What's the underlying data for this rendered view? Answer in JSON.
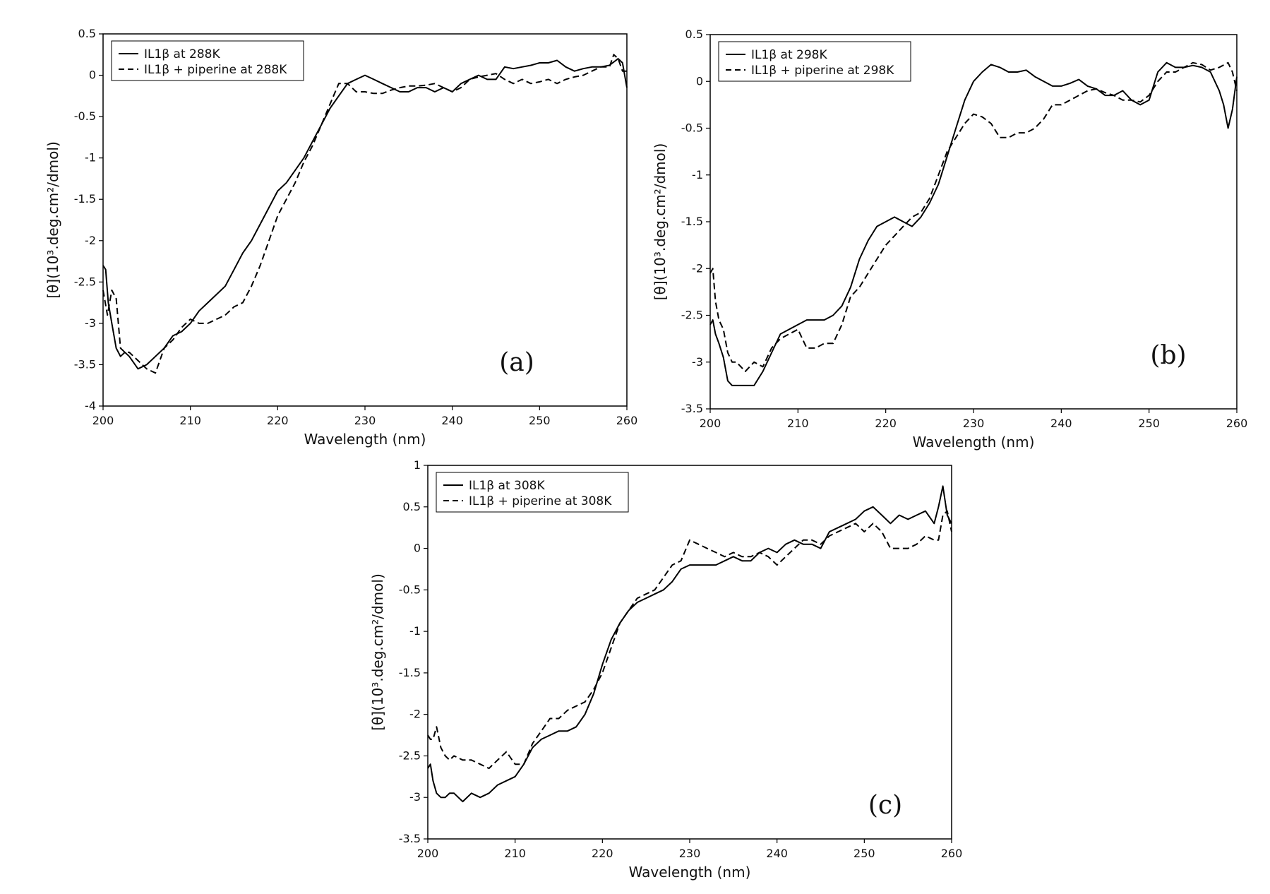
{
  "chart_data": [
    {
      "type": "line",
      "panel_label": "(a)",
      "xlabel": "Wavelength (nm)",
      "ylabel": "[θ](10³.deg.cm²/dmol)",
      "xlim": [
        200,
        260
      ],
      "ylim": [
        -4,
        0.5
      ],
      "xticks": [
        200,
        210,
        220,
        230,
        240,
        250,
        260
      ],
      "yticks": [
        0.5,
        0,
        -0.5,
        -1,
        -1.5,
        -2,
        -2.5,
        -3,
        -3.5,
        -4
      ],
      "ytick_labels": [
        "0.5",
        "0",
        "-0.5",
        "-1",
        "-1.5",
        "-2",
        "-2.5",
        "-3",
        "-3.5",
        "-4"
      ],
      "legend_position": "top-left",
      "series": [
        {
          "name": "IL1β at 288K",
          "style": "solid",
          "x": [
            200,
            200.3,
            200.6,
            201,
            201.5,
            202,
            202.5,
            203,
            204,
            205,
            206,
            207,
            208,
            209,
            210,
            211,
            212,
            213,
            214,
            215,
            216,
            217,
            218,
            219,
            220,
            221,
            222,
            223,
            224,
            225,
            226,
            227,
            228,
            229,
            230,
            231,
            232,
            233,
            234,
            235,
            236,
            237,
            238,
            239,
            240,
            241,
            242,
            243,
            244,
            245,
            246,
            247,
            248,
            249,
            250,
            251,
            252,
            253,
            254,
            255,
            256,
            257,
            258,
            259,
            259.5,
            260
          ],
          "y": [
            -2.3,
            -2.35,
            -2.75,
            -3.0,
            -3.3,
            -3.4,
            -3.35,
            -3.4,
            -3.55,
            -3.5,
            -3.4,
            -3.3,
            -3.15,
            -3.1,
            -3.0,
            -2.85,
            -2.75,
            -2.65,
            -2.55,
            -2.35,
            -2.15,
            -2.0,
            -1.8,
            -1.6,
            -1.4,
            -1.3,
            -1.15,
            -1.0,
            -0.8,
            -0.6,
            -0.4,
            -0.25,
            -0.1,
            -0.05,
            0.0,
            -0.05,
            -0.1,
            -0.15,
            -0.2,
            -0.2,
            -0.15,
            -0.15,
            -0.2,
            -0.15,
            -0.2,
            -0.1,
            -0.05,
            0.0,
            -0.05,
            -0.05,
            0.1,
            0.08,
            0.1,
            0.12,
            0.15,
            0.15,
            0.18,
            0.1,
            0.05,
            0.08,
            0.1,
            0.1,
            0.12,
            0.2,
            0.15,
            -0.15
          ]
        },
        {
          "name": "IL1β + piperine at 288K",
          "style": "dashed",
          "x": [
            200,
            200.5,
            201,
            201.5,
            202,
            202.5,
            203,
            204,
            205,
            206,
            207,
            208,
            209,
            210,
            211,
            212,
            213,
            214,
            215,
            216,
            217,
            218,
            219,
            220,
            221,
            222,
            223,
            224,
            225,
            226,
            227,
            228,
            229,
            230,
            231,
            232,
            233,
            234,
            235,
            236,
            237,
            238,
            239,
            240,
            241,
            242,
            243,
            244,
            245,
            246,
            247,
            248,
            249,
            250,
            251,
            252,
            253,
            254,
            255,
            256,
            257,
            258,
            258.5,
            259,
            259.5,
            260
          ],
          "y": [
            -2.6,
            -2.9,
            -2.6,
            -2.7,
            -3.3,
            -3.35,
            -3.35,
            -3.45,
            -3.55,
            -3.6,
            -3.3,
            -3.2,
            -3.05,
            -2.95,
            -3.0,
            -3.0,
            -2.95,
            -2.9,
            -2.8,
            -2.75,
            -2.55,
            -2.3,
            -2.0,
            -1.7,
            -1.5,
            -1.3,
            -1.05,
            -0.85,
            -0.6,
            -0.35,
            -0.1,
            -0.1,
            -0.2,
            -0.2,
            -0.22,
            -0.22,
            -0.18,
            -0.15,
            -0.13,
            -0.13,
            -0.12,
            -0.1,
            -0.15,
            -0.2,
            -0.15,
            -0.05,
            -0.02,
            0.0,
            0.02,
            -0.05,
            -0.1,
            -0.05,
            -0.1,
            -0.08,
            -0.05,
            -0.1,
            -0.05,
            -0.02,
            0.0,
            0.05,
            0.1,
            0.1,
            0.25,
            0.2,
            0.05,
            0.05
          ]
        }
      ]
    },
    {
      "type": "line",
      "panel_label": "(b)",
      "xlabel": "Wavelength (nm)",
      "ylabel": "[θ](10³.deg.cm²/dmol)",
      "xlim": [
        200,
        260
      ],
      "ylim": [
        -3.5,
        0.5
      ],
      "xticks": [
        200,
        210,
        220,
        230,
        240,
        250,
        260
      ],
      "yticks": [
        0.5,
        0,
        -0.5,
        -1,
        -1.5,
        -2,
        -2.5,
        -3,
        -3.5
      ],
      "ytick_labels": [
        "0.5",
        "0",
        "-0.5",
        "-1",
        "-1.5",
        "-2",
        "-2.5",
        "-3",
        "-3.5"
      ],
      "legend_position": "top-left",
      "series": [
        {
          "name": "IL1β at 298K",
          "style": "solid",
          "x": [
            200,
            200.3,
            200.6,
            201,
            201.5,
            202,
            202.5,
            203,
            204,
            205,
            206,
            207,
            208,
            209,
            210,
            211,
            212,
            213,
            214,
            215,
            216,
            217,
            218,
            219,
            220,
            221,
            222,
            223,
            224,
            225,
            226,
            227,
            228,
            229,
            230,
            231,
            232,
            233,
            234,
            235,
            236,
            237,
            238,
            239,
            240,
            241,
            242,
            243,
            244,
            245,
            246,
            247,
            248,
            249,
            250,
            251,
            252,
            253,
            254,
            255,
            256,
            257,
            258,
            258.5,
            259,
            259.5,
            260
          ],
          "y": [
            -2.6,
            -2.55,
            -2.7,
            -2.8,
            -2.95,
            -3.2,
            -3.25,
            -3.25,
            -3.25,
            -3.25,
            -3.1,
            -2.9,
            -2.7,
            -2.65,
            -2.6,
            -2.55,
            -2.55,
            -2.55,
            -2.5,
            -2.4,
            -2.2,
            -1.9,
            -1.7,
            -1.55,
            -1.5,
            -1.45,
            -1.5,
            -1.55,
            -1.45,
            -1.3,
            -1.1,
            -0.8,
            -0.5,
            -0.2,
            0.0,
            0.1,
            0.18,
            0.15,
            0.1,
            0.1,
            0.12,
            0.05,
            0.0,
            -0.05,
            -0.05,
            -0.02,
            0.02,
            -0.05,
            -0.08,
            -0.15,
            -0.15,
            -0.1,
            -0.2,
            -0.25,
            -0.2,
            0.1,
            0.2,
            0.15,
            0.15,
            0.17,
            0.15,
            0.1,
            -0.1,
            -0.25,
            -0.5,
            -0.3,
            0.05
          ]
        },
        {
          "name": "IL1β + piperine at 298K",
          "style": "dashed",
          "x": [
            200,
            200.3,
            200.6,
            201,
            201.5,
            202,
            202.5,
            203,
            204,
            205,
            206,
            207,
            208,
            209,
            210,
            211,
            212,
            213,
            214,
            215,
            216,
            217,
            218,
            219,
            220,
            221,
            222,
            223,
            224,
            225,
            226,
            227,
            228,
            229,
            230,
            231,
            232,
            233,
            234,
            235,
            236,
            237,
            238,
            239,
            240,
            241,
            242,
            243,
            244,
            245,
            246,
            247,
            248,
            249,
            250,
            251,
            252,
            253,
            254,
            255,
            256,
            257,
            258,
            259,
            259.5,
            260
          ],
          "y": [
            -2.05,
            -2.0,
            -2.35,
            -2.55,
            -2.65,
            -2.9,
            -3.0,
            -3.0,
            -3.1,
            -3.0,
            -3.05,
            -2.85,
            -2.75,
            -2.7,
            -2.65,
            -2.85,
            -2.85,
            -2.8,
            -2.8,
            -2.6,
            -2.3,
            -2.2,
            -2.05,
            -1.9,
            -1.75,
            -1.65,
            -1.55,
            -1.45,
            -1.4,
            -1.25,
            -1.0,
            -0.75,
            -0.6,
            -0.45,
            -0.35,
            -0.38,
            -0.45,
            -0.6,
            -0.6,
            -0.55,
            -0.55,
            -0.5,
            -0.4,
            -0.25,
            -0.25,
            -0.2,
            -0.15,
            -0.1,
            -0.08,
            -0.12,
            -0.15,
            -0.2,
            -0.2,
            -0.22,
            -0.15,
            0.0,
            0.1,
            0.1,
            0.15,
            0.2,
            0.18,
            0.12,
            0.15,
            0.2,
            0.1,
            -0.1
          ]
        }
      ]
    },
    {
      "type": "line",
      "panel_label": "(c)",
      "xlabel": "Wavelength (nm)",
      "ylabel": "[θ](10³.deg.cm²/dmol)",
      "xlim": [
        200,
        260
      ],
      "ylim": [
        -3.5,
        1
      ],
      "xticks": [
        200,
        210,
        220,
        230,
        240,
        250,
        260
      ],
      "yticks": [
        1,
        0.5,
        0,
        -0.5,
        -1,
        -1.5,
        -2,
        -2.5,
        -3,
        -3.5
      ],
      "ytick_labels": [
        "1",
        "0.5",
        "0",
        "-0.5",
        "-1",
        "-1.5",
        "-2",
        "-2.5",
        "-3",
        "-3.5"
      ],
      "legend_position": "top-left",
      "series": [
        {
          "name": "IL1β  at 308K",
          "style": "solid",
          "x": [
            200,
            200.3,
            200.6,
            201,
            201.5,
            202,
            202.5,
            203,
            204,
            205,
            206,
            207,
            208,
            209,
            210,
            211,
            212,
            213,
            214,
            215,
            216,
            217,
            218,
            219,
            220,
            221,
            222,
            223,
            224,
            225,
            226,
            227,
            228,
            229,
            230,
            231,
            232,
            233,
            234,
            235,
            236,
            237,
            238,
            239,
            240,
            241,
            242,
            243,
            244,
            245,
            246,
            247,
            248,
            249,
            250,
            251,
            252,
            253,
            254,
            255,
            256,
            257,
            258,
            258.5,
            259,
            259.5,
            260
          ],
          "y": [
            -2.65,
            -2.6,
            -2.8,
            -2.95,
            -3.0,
            -3.0,
            -2.95,
            -2.95,
            -3.05,
            -2.95,
            -3.0,
            -2.95,
            -2.85,
            -2.8,
            -2.75,
            -2.6,
            -2.4,
            -2.3,
            -2.25,
            -2.2,
            -2.2,
            -2.15,
            -2.0,
            -1.75,
            -1.4,
            -1.1,
            -0.9,
            -0.75,
            -0.65,
            -0.6,
            -0.55,
            -0.5,
            -0.4,
            -0.25,
            -0.2,
            -0.2,
            -0.2,
            -0.2,
            -0.15,
            -0.1,
            -0.15,
            -0.15,
            -0.05,
            0.0,
            -0.05,
            0.05,
            0.1,
            0.05,
            0.05,
            0.0,
            0.2,
            0.25,
            0.3,
            0.35,
            0.45,
            0.5,
            0.4,
            0.3,
            0.4,
            0.35,
            0.4,
            0.45,
            0.3,
            0.5,
            0.75,
            0.4,
            0.3
          ]
        },
        {
          "name": "IL1β + piperine at 308K",
          "style": "dashed",
          "x": [
            200,
            200.3,
            200.6,
            201,
            201.5,
            202,
            202.5,
            203,
            204,
            205,
            206,
            207,
            208,
            209,
            210,
            211,
            212,
            213,
            214,
            215,
            216,
            217,
            218,
            219,
            220,
            221,
            222,
            223,
            224,
            225,
            226,
            227,
            228,
            229,
            230,
            231,
            232,
            233,
            234,
            235,
            236,
            237,
            238,
            239,
            240,
            241,
            242,
            243,
            244,
            245,
            246,
            247,
            248,
            249,
            250,
            251,
            252,
            253,
            254,
            255,
            256,
            257,
            258,
            258.5,
            259,
            259.5,
            260
          ],
          "y": [
            -2.25,
            -2.3,
            -2.3,
            -2.15,
            -2.4,
            -2.5,
            -2.55,
            -2.5,
            -2.55,
            -2.55,
            -2.6,
            -2.65,
            -2.55,
            -2.45,
            -2.6,
            -2.6,
            -2.35,
            -2.2,
            -2.05,
            -2.05,
            -1.95,
            -1.9,
            -1.85,
            -1.7,
            -1.5,
            -1.2,
            -0.9,
            -0.75,
            -0.6,
            -0.55,
            -0.5,
            -0.35,
            -0.2,
            -0.15,
            0.1,
            0.05,
            0.0,
            -0.05,
            -0.1,
            -0.05,
            -0.1,
            -0.1,
            -0.05,
            -0.1,
            -0.2,
            -0.1,
            0.0,
            0.1,
            0.1,
            0.05,
            0.15,
            0.2,
            0.25,
            0.3,
            0.2,
            0.3,
            0.2,
            0.0,
            0.0,
            0.0,
            0.05,
            0.15,
            0.1,
            0.1,
            0.4,
            0.45,
            0.2
          ]
        }
      ]
    }
  ]
}
